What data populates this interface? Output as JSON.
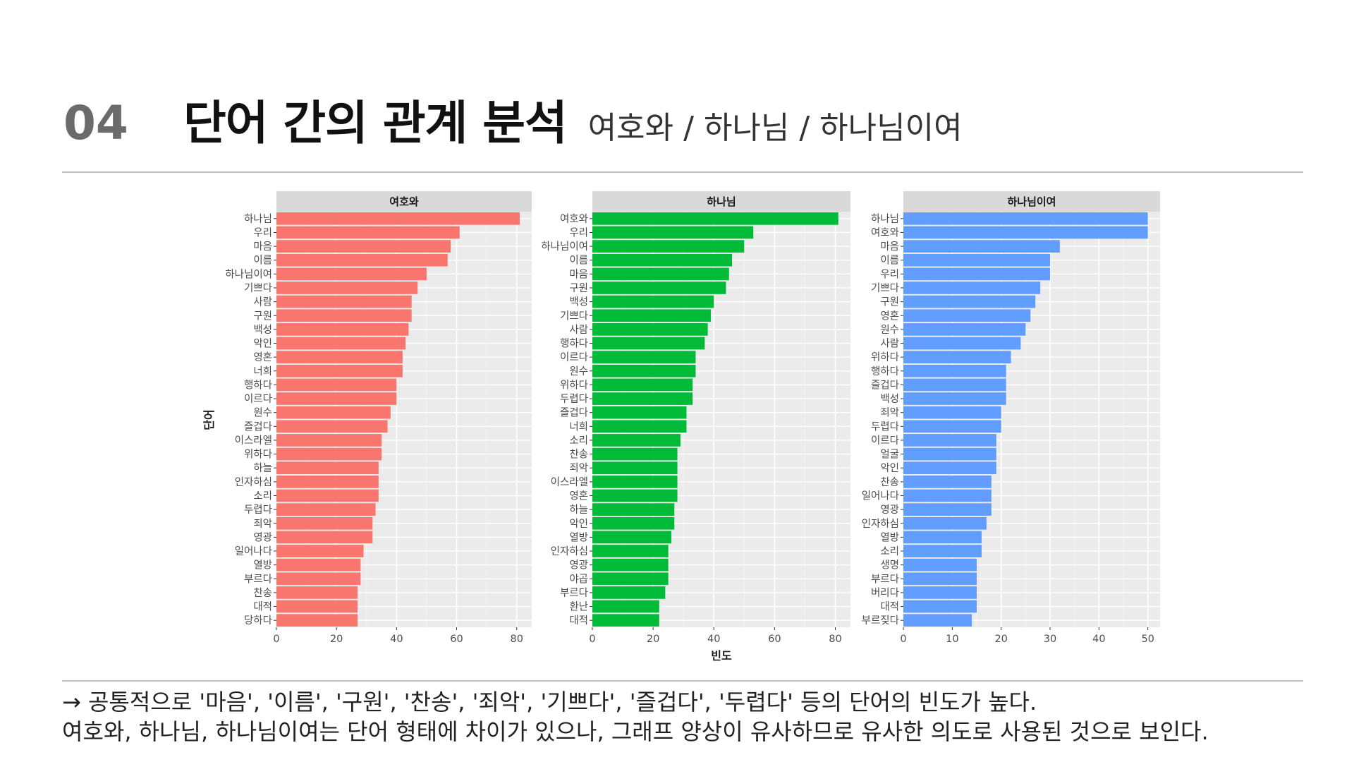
{
  "header": {
    "number": "04",
    "title": "단어 간의 관계 분석",
    "subtitle": "여호와 / 하나님 / 하나님이여"
  },
  "footer": {
    "line1": "→ 공통적으로 '마음', '이름', '구원', '찬송', '죄악', '기쁘다', '즐겁다', '두렵다' 등의 단어의 빈도가 높다.",
    "line2": "여호와, 하나님, 하나님이여는 단어 형태에 차이가 있으나, 그래프 양상이 유사하므로 유사한 의도로 사용된 것으로 보인다."
  },
  "chart_data": {
    "type": "bar",
    "orientation": "horizontal",
    "xlabel": "빈도",
    "ylabel": "단어",
    "grid": true,
    "panels": [
      {
        "strip": "여호와",
        "color": "#F8766D",
        "xlim": [
          0,
          85
        ],
        "ticks": [
          0,
          20,
          40,
          60,
          80
        ],
        "categories": [
          "하나님",
          "우리",
          "마음",
          "이름",
          "하나님이여",
          "기쁘다",
          "사람",
          "구원",
          "백성",
          "악인",
          "영혼",
          "너희",
          "행하다",
          "이르다",
          "원수",
          "즐겁다",
          "이스라엘",
          "위하다",
          "하늘",
          "인자하심",
          "소리",
          "두렵다",
          "죄악",
          "영광",
          "일어나다",
          "열방",
          "부르다",
          "찬송",
          "대적",
          "당하다"
        ],
        "values": [
          81,
          61,
          58,
          57,
          50,
          47,
          45,
          45,
          44,
          43,
          42,
          42,
          40,
          40,
          38,
          37,
          35,
          35,
          34,
          34,
          34,
          33,
          32,
          32,
          29,
          28,
          28,
          27,
          27,
          27
        ]
      },
      {
        "strip": "하나님",
        "color": "#00BA38",
        "xlim": [
          0,
          85
        ],
        "ticks": [
          0,
          20,
          40,
          60,
          80
        ],
        "categories": [
          "여호와",
          "우리",
          "하나님이여",
          "이름",
          "마음",
          "구원",
          "백성",
          "기쁘다",
          "사람",
          "행하다",
          "이르다",
          "원수",
          "위하다",
          "두렵다",
          "즐겁다",
          "너희",
          "소리",
          "찬송",
          "죄악",
          "이스라엘",
          "영혼",
          "하늘",
          "악인",
          "열방",
          "인자하심",
          "영광",
          "야곱",
          "부르다",
          "환난",
          "대적"
        ],
        "values": [
          81,
          53,
          50,
          46,
          45,
          44,
          40,
          39,
          38,
          37,
          34,
          34,
          33,
          33,
          31,
          31,
          29,
          28,
          28,
          28,
          28,
          27,
          27,
          26,
          25,
          25,
          25,
          24,
          22,
          22
        ]
      },
      {
        "strip": "하나님이여",
        "color": "#619CFF",
        "xlim": [
          0,
          52.5
        ],
        "ticks": [
          0,
          10,
          20,
          30,
          40,
          50
        ],
        "categories": [
          "하나님",
          "여호와",
          "마음",
          "이름",
          "우리",
          "기쁘다",
          "구원",
          "영혼",
          "원수",
          "사람",
          "위하다",
          "행하다",
          "즐겁다",
          "백성",
          "죄악",
          "두렵다",
          "이르다",
          "얼굴",
          "악인",
          "찬송",
          "일어나다",
          "영광",
          "인자하심",
          "열방",
          "소리",
          "생명",
          "부르다",
          "버리다",
          "대적",
          "부르짖다"
        ],
        "values": [
          50,
          50,
          32,
          30,
          30,
          28,
          27,
          26,
          25,
          24,
          22,
          21,
          21,
          21,
          20,
          20,
          19,
          19,
          19,
          18,
          18,
          18,
          17,
          16,
          16,
          15,
          15,
          15,
          15,
          14
        ]
      }
    ]
  }
}
